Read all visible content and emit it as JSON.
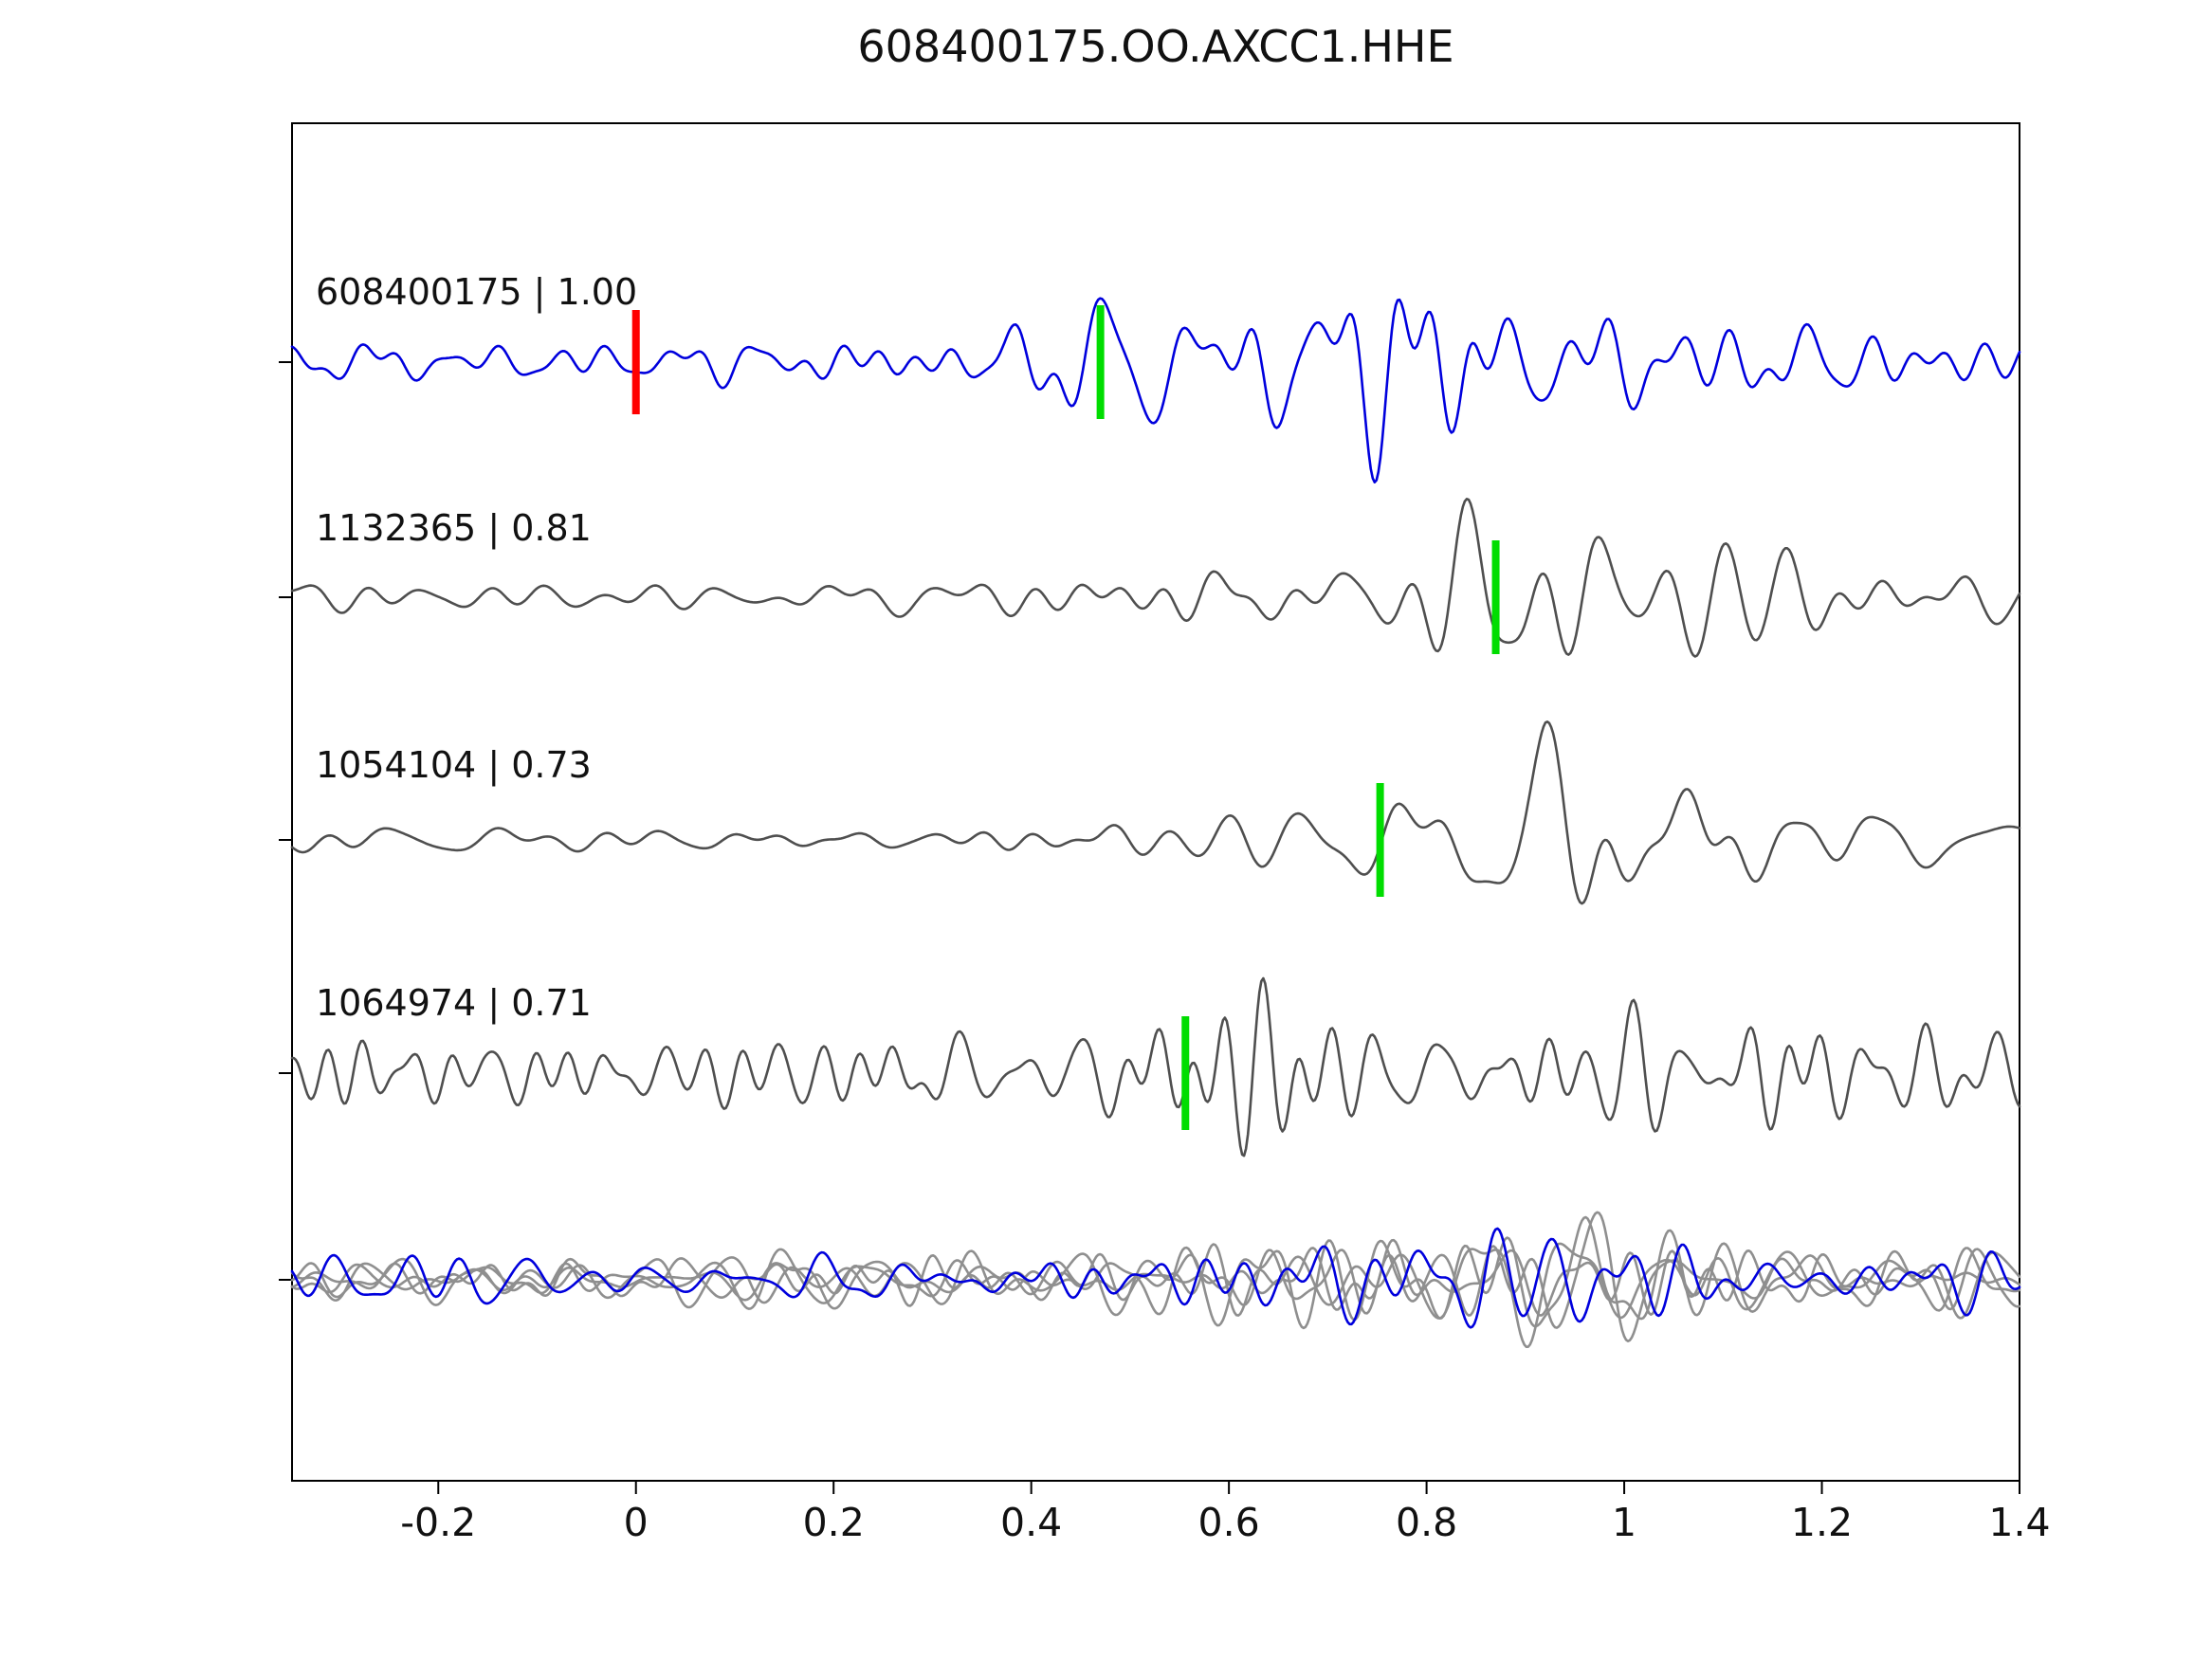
{
  "figure": {
    "title": "608400175.OO.AXCC1.HHE"
  },
  "chart_data": {
    "type": "line",
    "title": "608400175.OO.AXCC1.HHE",
    "subtitle": "",
    "xlabel": "",
    "ylabel": "",
    "xlim": [
      -0.348,
      1.4
    ],
    "grid": false,
    "legend": "none",
    "x_ticks": [
      {
        "value": -0.2,
        "label": "-0.2"
      },
      {
        "value": 0,
        "label": "0"
      },
      {
        "value": 0.2,
        "label": "0.2"
      },
      {
        "value": 0.4,
        "label": "0.4"
      },
      {
        "value": 0.6,
        "label": "0.6"
      },
      {
        "value": 0.8,
        "label": "0.8"
      },
      {
        "value": 1,
        "label": "1"
      },
      {
        "value": 1.2,
        "label": "1.2"
      },
      {
        "value": 1.4,
        "label": "1.4"
      }
    ],
    "marker_colors": {
      "pick_green": "#00dd00",
      "template_red": "#ff0000"
    },
    "trace_colors": {
      "template_blue": "#0000dd",
      "detection_gray": "#4f4f4f",
      "overlay_gray": "#8f8f8f"
    },
    "traces": [
      {
        "id": "608400175",
        "correlation": "1.00",
        "label": "608400175 | 1.00",
        "color": "#0000dd",
        "row": 0,
        "template_marker_x": 0.0,
        "pick_x": 0.47,
        "seed": 42,
        "freq": [
          8,
          30
        ],
        "envelope": [
          [
            -0.35,
            26
          ],
          [
            0.3,
            30
          ],
          [
            0.45,
            60
          ],
          [
            0.55,
            85
          ],
          [
            0.78,
            85
          ],
          [
            0.95,
            70
          ],
          [
            1.1,
            52
          ],
          [
            1.4,
            46
          ]
        ]
      },
      {
        "id": "1132365",
        "correlation": "0.81",
        "label": "1132365 | 0.81",
        "color": "#4f4f4f",
        "row": 1,
        "pick_x": 0.87,
        "seed": 7,
        "freq": [
          6,
          24
        ],
        "envelope": [
          [
            -0.35,
            13
          ],
          [
            0.3,
            16
          ],
          [
            0.5,
            32
          ],
          [
            0.8,
            52
          ],
          [
            0.9,
            100
          ],
          [
            1.0,
            80
          ],
          [
            1.15,
            55
          ],
          [
            1.4,
            38
          ]
        ]
      },
      {
        "id": "1054104",
        "correlation": "0.73",
        "label": "1054104 | 0.73",
        "color": "#4f4f4f",
        "row": 2,
        "pick_x": 0.753,
        "seed": 13,
        "freq": [
          6,
          24
        ],
        "envelope": [
          [
            -0.35,
            16
          ],
          [
            0.3,
            20
          ],
          [
            0.5,
            32
          ],
          [
            0.8,
            48
          ],
          [
            0.92,
            100
          ],
          [
            1.05,
            70
          ],
          [
            1.25,
            52
          ],
          [
            1.4,
            42
          ]
        ]
      },
      {
        "id": "1064974",
        "correlation": "0.71",
        "label": "1064974 | 0.71",
        "color": "#4f4f4f",
        "row": 3,
        "pick_x": 0.556,
        "seed": 99,
        "freq": [
          10,
          34
        ],
        "envelope": [
          [
            -0.35,
            40
          ],
          [
            0.2,
            45
          ],
          [
            0.5,
            58
          ],
          [
            0.7,
            60
          ],
          [
            0.9,
            80
          ],
          [
            1.05,
            72
          ],
          [
            1.4,
            55
          ]
        ]
      }
    ],
    "overlay": {
      "row": 4,
      "traces": [
        {
          "color": "#8f8f8f",
          "seed": 21,
          "freq": [
            8,
            28
          ],
          "envelope": [
            [
              -0.35,
              28
            ],
            [
              0.4,
              32
            ],
            [
              0.6,
              40
            ],
            [
              0.85,
              60
            ],
            [
              0.95,
              65
            ],
            [
              1.1,
              40
            ],
            [
              1.4,
              32
            ]
          ]
        },
        {
          "color": "#8f8f8f",
          "seed": 34,
          "freq": [
            8,
            28
          ],
          "envelope": [
            [
              -0.35,
              25
            ],
            [
              0.4,
              30
            ],
            [
              0.6,
              42
            ],
            [
              0.85,
              62
            ],
            [
              0.95,
              72
            ],
            [
              1.1,
              42
            ],
            [
              1.4,
              30
            ]
          ]
        },
        {
          "color": "#8f8f8f",
          "seed": 55,
          "freq": [
            8,
            28
          ],
          "envelope": [
            [
              -0.35,
              26
            ],
            [
              0.4,
              30
            ],
            [
              0.6,
              40
            ],
            [
              0.88,
              65
            ],
            [
              0.98,
              74
            ],
            [
              1.15,
              45
            ],
            [
              1.4,
              34
            ]
          ]
        },
        {
          "color": "#8f8f8f",
          "seed": 89,
          "freq": [
            8,
            28
          ],
          "envelope": [
            [
              -0.35,
              24
            ],
            [
              0.4,
              28
            ],
            [
              0.6,
              38
            ],
            [
              0.85,
              58
            ],
            [
              0.95,
              62
            ],
            [
              1.1,
              40
            ],
            [
              1.4,
              30
            ]
          ]
        },
        {
          "color": "#0000dd",
          "seed": 144,
          "freq": [
            8,
            28
          ],
          "envelope": [
            [
              -0.35,
              26
            ],
            [
              0.4,
              30
            ],
            [
              0.6,
              45
            ],
            [
              0.8,
              55
            ],
            [
              0.95,
              60
            ],
            [
              1.1,
              42
            ],
            [
              1.4,
              35
            ]
          ]
        }
      ]
    }
  }
}
